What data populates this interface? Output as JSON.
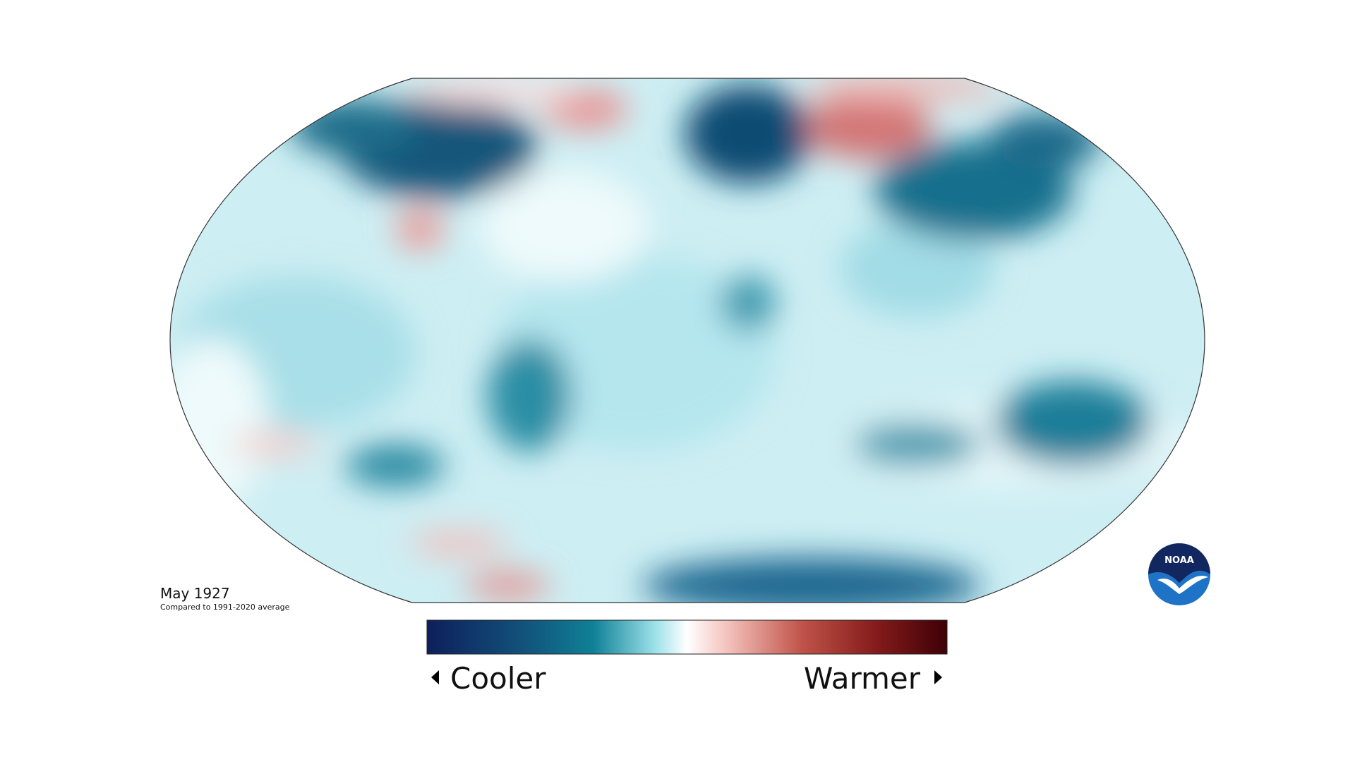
{
  "title": "May 1927",
  "subtitle": "Compared to 1991-2020 average",
  "legend": {
    "low": "Cooler",
    "high": "Warmer"
  },
  "logo": "NOAA"
}
